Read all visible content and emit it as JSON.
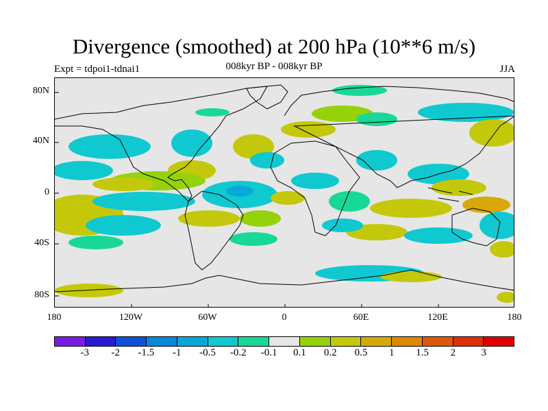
{
  "title": "Divergence (smoothed) at 200 hPa (10**6 m/s)",
  "subtitle_left": "Expt = tdpoi1-tdnai1",
  "subtitle_center": "008kyr BP - 008kyr BP",
  "subtitle_right": "JJA",
  "lat_labels": [
    "80N",
    "40N",
    "0",
    "40S",
    "80S"
  ],
  "lon_labels": [
    "180",
    "120W",
    "60W",
    "0",
    "60E",
    "120E",
    "180"
  ],
  "colorbar": {
    "colors": [
      "#7a1de0",
      "#2a1ad2",
      "#1050d8",
      "#0a88d8",
      "#08a8d8",
      "#10c8d0",
      "#18d898",
      "#e6e6e6",
      "#96d20a",
      "#c4c80a",
      "#d8a808",
      "#dc8808",
      "#dc5808",
      "#dc3008",
      "#e00000"
    ],
    "labels": [
      "-3",
      "-2",
      "-1.5",
      "-1",
      "-0.5",
      "-0.2",
      "-0.1",
      "0.1",
      "0.2",
      "0.5",
      "1",
      "1.5",
      "2",
      "3"
    ]
  },
  "colors": {
    "background": "#e6e6e6",
    "neg_weak": "#18d898",
    "neg_mid": "#10c8d0",
    "neg_strong": "#08a8d8",
    "pos_weak": "#96d20a",
    "pos_mid": "#c4c80a",
    "pos_strong": "#d8a808"
  }
}
